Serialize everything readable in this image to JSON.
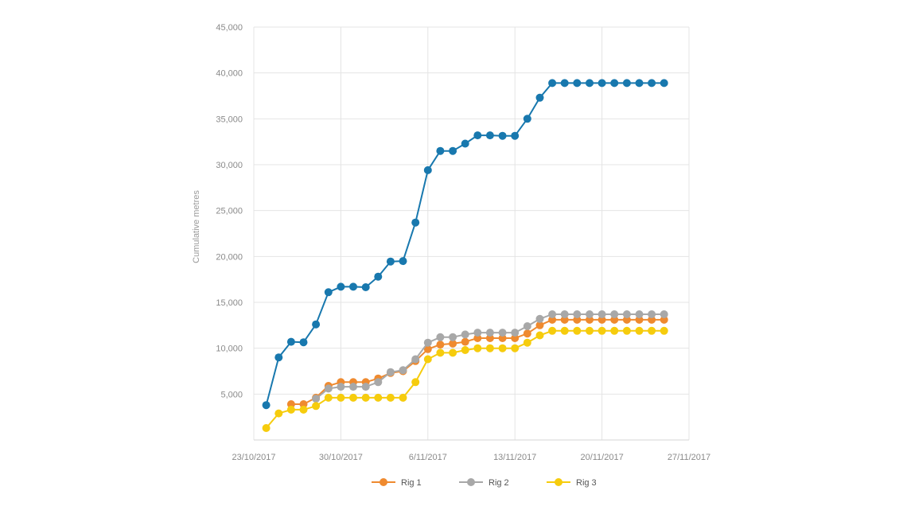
{
  "chart_data": {
    "type": "line",
    "title": "",
    "xlabel": "",
    "ylabel": "Cumulative metres",
    "x_range": [
      "2017-10-23",
      "2017-11-27"
    ],
    "x_ticks": [
      "2017-10-23",
      "2017-10-30",
      "2017-11-06",
      "2017-11-13",
      "2017-11-20",
      "2017-11-27"
    ],
    "x_tick_labels": [
      "23/10/2017",
      "30/10/2017",
      "6/11/2017",
      "13/11/2017",
      "20/11/2017",
      "27/11/2017"
    ],
    "ylim": [
      0,
      45000
    ],
    "y_ticks": [
      5000,
      10000,
      15000,
      20000,
      25000,
      30000,
      35000,
      40000,
      45000
    ],
    "y_tick_labels": [
      "5,000",
      "10,000",
      "15,000",
      "20,000",
      "25,000",
      "30,000",
      "35,000",
      "40,000",
      "45,000"
    ],
    "grid": true,
    "legend_position": "bottom",
    "x": [
      "2017-10-24",
      "2017-10-25",
      "2017-10-26",
      "2017-10-27",
      "2017-10-28",
      "2017-10-29",
      "2017-10-30",
      "2017-10-31",
      "2017-11-01",
      "2017-11-02",
      "2017-11-03",
      "2017-11-04",
      "2017-11-05",
      "2017-11-06",
      "2017-11-07",
      "2017-11-08",
      "2017-11-09",
      "2017-11-10",
      "2017-11-11",
      "2017-11-12",
      "2017-11-13",
      "2017-11-14",
      "2017-11-15",
      "2017-11-16",
      "2017-11-17",
      "2017-11-18",
      "2017-11-19",
      "2017-11-20",
      "2017-11-21",
      "2017-11-22",
      "2017-11-23",
      "2017-11-24",
      "2017-11-25"
    ],
    "series": [
      {
        "name": "",
        "color": "#1878ae",
        "in_legend": false,
        "values": [
          3800,
          9000,
          10700,
          10650,
          12600,
          16100,
          16700,
          16700,
          16650,
          17800,
          19450,
          19500,
          23700,
          29400,
          31500,
          31500,
          32300,
          33200,
          33200,
          33150,
          33150,
          35000,
          37300,
          38900,
          38900,
          38900,
          38900,
          38900,
          38900,
          38900,
          38900,
          38900,
          38900
        ]
      },
      {
        "name": "Rig 1",
        "color": "#ef8a2f",
        "in_legend": true,
        "values": [
          null,
          null,
          3900,
          3900,
          4600,
          5900,
          6300,
          6300,
          6300,
          6700,
          7300,
          7500,
          8600,
          9900,
          10400,
          10500,
          10700,
          11100,
          11100,
          11100,
          11100,
          11600,
          12500,
          13100,
          13100,
          13100,
          13100,
          13100,
          13100,
          13100,
          13100,
          13100,
          13100
        ]
      },
      {
        "name": "Rig 2",
        "color": "#a8a8a8",
        "in_legend": true,
        "values": [
          null,
          null,
          null,
          null,
          4500,
          5600,
          5800,
          5800,
          5800,
          6300,
          7400,
          7600,
          8800,
          10600,
          11200,
          11200,
          11500,
          11700,
          11700,
          11700,
          11700,
          12400,
          13200,
          13700,
          13700,
          13700,
          13700,
          13700,
          13700,
          13700,
          13700,
          13700,
          13700
        ]
      },
      {
        "name": "Rig 3",
        "color": "#f6cc0d",
        "in_legend": true,
        "values": [
          1300,
          2900,
          3300,
          3300,
          3700,
          4600,
          4600,
          4600,
          4600,
          4600,
          4600,
          4600,
          6300,
          8800,
          9500,
          9500,
          9800,
          10000,
          10000,
          10000,
          10000,
          10600,
          11400,
          11900,
          11900,
          11900,
          11900,
          11900,
          11900,
          11900,
          11900,
          11900,
          11900
        ]
      }
    ]
  }
}
